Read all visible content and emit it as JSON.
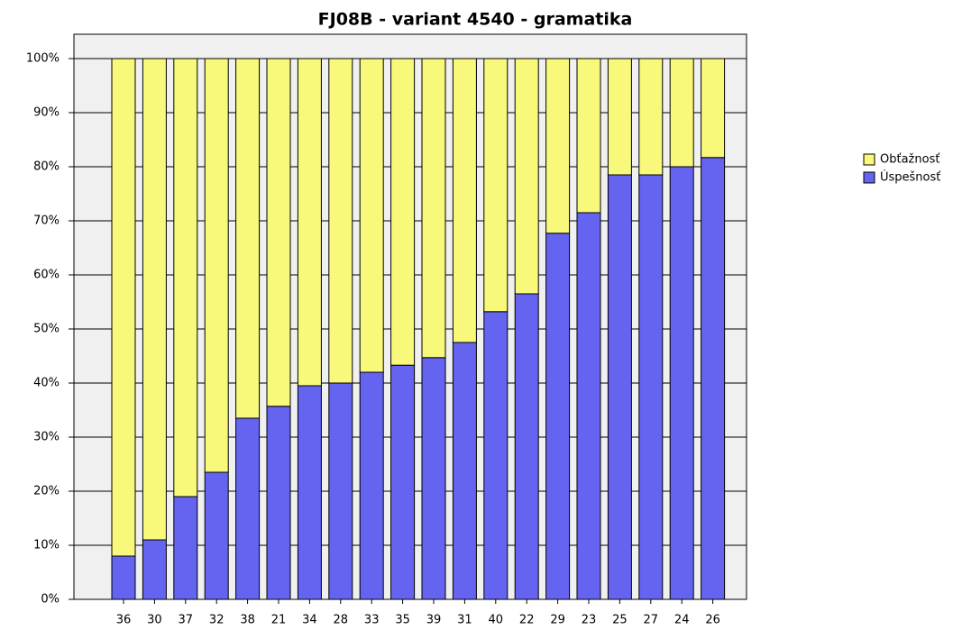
{
  "chart_data": {
    "type": "stacked_bar",
    "title": "FJ08B - variant 4540 - gramatika",
    "categories": [
      "36",
      "30",
      "37",
      "32",
      "38",
      "21",
      "34",
      "28",
      "33",
      "35",
      "39",
      "31",
      "40",
      "22",
      "29",
      "23",
      "25",
      "27",
      "24",
      "26"
    ],
    "series": [
      {
        "name": "Úspešnosť",
        "color": "#6464f0",
        "values": [
          8,
          11,
          19,
          23.5,
          33.5,
          35.7,
          39.5,
          40,
          42,
          43.3,
          44.7,
          47.5,
          53.2,
          56.5,
          67.7,
          71.5,
          78.5,
          78.5,
          80,
          81.7
        ]
      },
      {
        "name": "Obťažnosť",
        "color": "#f8f87a",
        "values": [
          92,
          89,
          81,
          76.5,
          66.5,
          64.3,
          60.5,
          60,
          58,
          56.7,
          55.3,
          52.5,
          46.8,
          43.5,
          32.3,
          28.5,
          21.5,
          21.5,
          20,
          18.3
        ]
      }
    ],
    "ylim": [
      0,
      100
    ],
    "yticks": [
      {
        "value": 0,
        "label": "0%"
      },
      {
        "value": 10,
        "label": "10%"
      },
      {
        "value": 20,
        "label": "20%"
      },
      {
        "value": 30,
        "label": "30%"
      },
      {
        "value": 40,
        "label": "40%"
      },
      {
        "value": 50,
        "label": "50%"
      },
      {
        "value": 60,
        "label": "60%"
      },
      {
        "value": 70,
        "label": "70%"
      },
      {
        "value": 80,
        "label": "80%"
      },
      {
        "value": 90,
        "label": "90%"
      },
      {
        "value": 100,
        "label": "100%"
      }
    ],
    "grid": true,
    "legend": "right"
  }
}
